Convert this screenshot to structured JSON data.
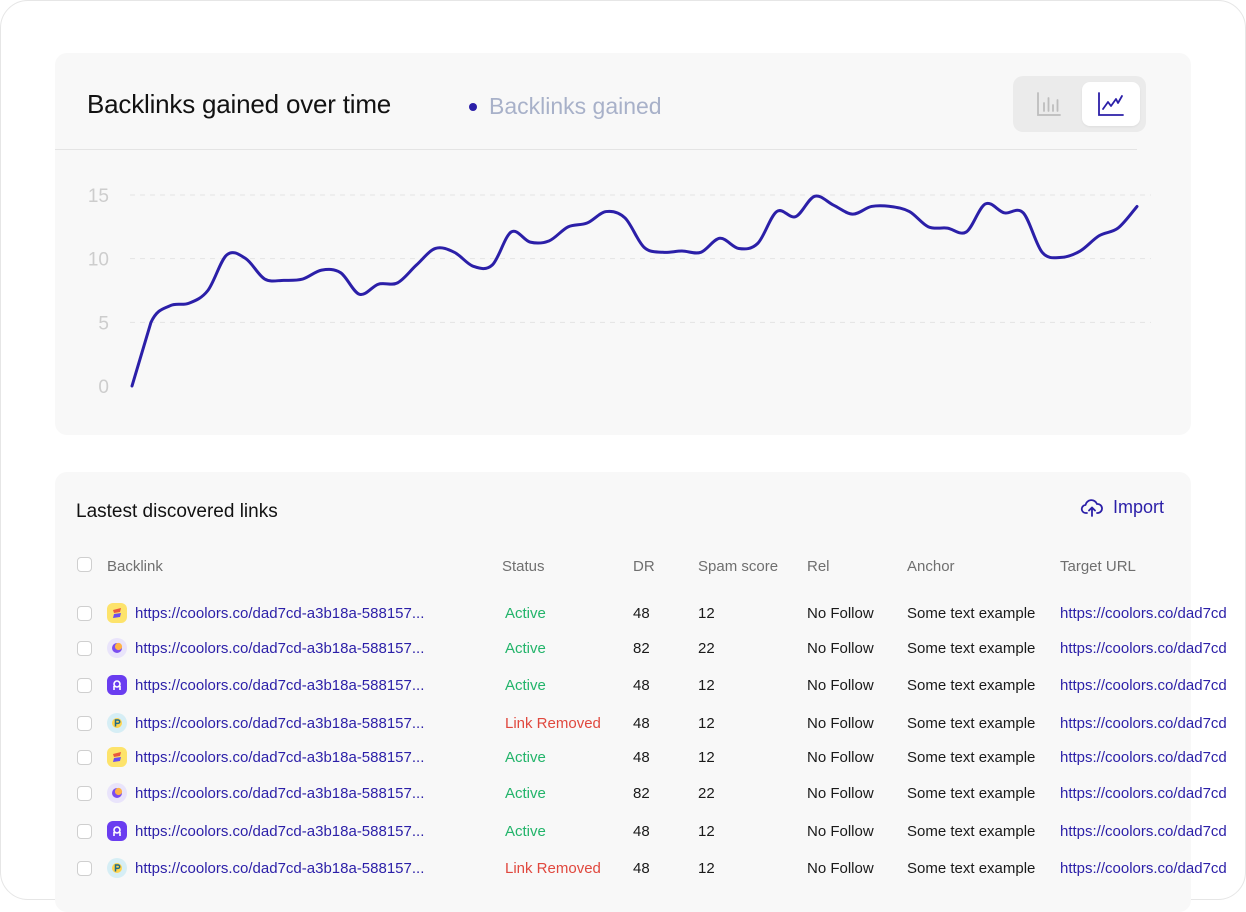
{
  "chart_card": {
    "title": "Backlinks gained over time",
    "legend_label": "Backlinks gained",
    "accent_color": "#2b1fa8",
    "view_toggle": {
      "options": [
        "bar-chart",
        "line-chart"
      ],
      "selected": "line-chart"
    }
  },
  "chart_data": {
    "type": "line",
    "title": "Backlinks gained over time",
    "xlabel": "",
    "ylabel": "",
    "ylim": [
      0,
      15
    ],
    "yticks": [
      "0",
      "5",
      "10",
      "15"
    ],
    "grid": true,
    "legend": "top",
    "series": [
      {
        "name": "Backlinks gained",
        "color": "#2b1fa8",
        "values": [
          0,
          5,
          6.3,
          6.5,
          7.5,
          10.3,
          10,
          8.4,
          8.3,
          8.4,
          9.1,
          8.9,
          7.2,
          8,
          8.1,
          9.5,
          10.8,
          10.5,
          9.4,
          9.5,
          12.1,
          11.3,
          11.4,
          12.5,
          12.8,
          13.7,
          13.2,
          10.9,
          10.5,
          10.6,
          10.5,
          11.6,
          10.8,
          11.2,
          13.7,
          13.3,
          14.9,
          14.2,
          13.5,
          14.1,
          14.1,
          13.7,
          12.5,
          12.4,
          12.1,
          14.3,
          13.6,
          13.6,
          10.5,
          10.1,
          10.6,
          11.8,
          12.4,
          14.1
        ]
      }
    ]
  },
  "table": {
    "title": "Lastest discovered links",
    "import_label": "Import",
    "headers": {
      "backlink": "Backlink",
      "status": "Status",
      "dr": "DR",
      "spam": "Spam score",
      "rel": "Rel",
      "anchor": "Anchor",
      "target": "Target URL"
    },
    "rows": [
      {
        "favicon": "yellow-logo-icon",
        "backlink": "https://coolors.co/dad7cd-a3b18a-588157...",
        "status": "Active",
        "dr": "48",
        "spam": "12",
        "rel": "No Follow",
        "anchor": "Some text example",
        "target": "https://coolors.co/dad7cd"
      },
      {
        "favicon": "purple-moon-icon",
        "backlink": "https://coolors.co/dad7cd-a3b18a-588157...",
        "status": "Active",
        "dr": "82",
        "spam": "22",
        "rel": "No Follow",
        "anchor": "Some text example",
        "target": "https://coolors.co/dad7cd"
      },
      {
        "favicon": "violet-app-icon",
        "backlink": "https://coolors.co/dad7cd-a3b18a-588157...",
        "status": "Active",
        "dr": "48",
        "spam": "12",
        "rel": "No Follow",
        "anchor": "Some text example",
        "target": "https://coolors.co/dad7cd"
      },
      {
        "favicon": "teal-p-icon",
        "backlink": "https://coolors.co/dad7cd-a3b18a-588157...",
        "status": "Link Removed",
        "dr": "48",
        "spam": "12",
        "rel": "No Follow",
        "anchor": "Some text example",
        "target": "https://coolors.co/dad7cd"
      },
      {
        "favicon": "yellow-logo-icon",
        "backlink": "https://coolors.co/dad7cd-a3b18a-588157...",
        "status": "Active",
        "dr": "48",
        "spam": "12",
        "rel": "No Follow",
        "anchor": "Some text example",
        "target": "https://coolors.co/dad7cd"
      },
      {
        "favicon": "purple-moon-icon",
        "backlink": "https://coolors.co/dad7cd-a3b18a-588157...",
        "status": "Active",
        "dr": "82",
        "spam": "22",
        "rel": "No Follow",
        "anchor": "Some text example",
        "target": "https://coolors.co/dad7cd"
      },
      {
        "favicon": "violet-app-icon",
        "backlink": "https://coolors.co/dad7cd-a3b18a-588157...",
        "status": "Active",
        "dr": "48",
        "spam": "12",
        "rel": "No Follow",
        "anchor": "Some text example",
        "target": "https://coolors.co/dad7cd"
      },
      {
        "favicon": "teal-p-icon",
        "backlink": "https://coolors.co/dad7cd-a3b18a-588157...",
        "status": "Link Removed",
        "dr": "48",
        "spam": "12",
        "rel": "No Follow",
        "anchor": "Some text example",
        "target": "https://coolors.co/dad7cd"
      }
    ],
    "status_colors": {
      "Active": "#22b46a",
      "Link Removed": "#e0483e"
    }
  }
}
